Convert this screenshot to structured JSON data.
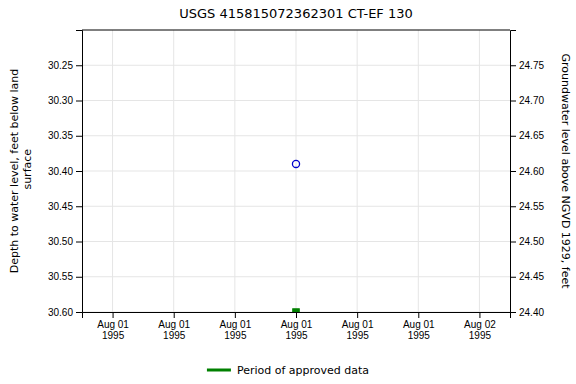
{
  "chart_data": {
    "type": "scatter",
    "title": "USGS 415815072362301  CT-EF   130",
    "y_label": "Depth to water level, feet below land\n surface",
    "y2_label": "Groundwater level above NGVD 1929, feet",
    "categories": [
      "Aug 01\n1995",
      "Aug 01\n1995",
      "Aug 01\n1995",
      "Aug 01\n1995",
      "Aug 01\n1995",
      "Aug 01\n1995",
      "Aug 02\n1995"
    ],
    "series": [
      {
        "color": "#0000cc",
        "marker": "circle-open",
        "values": [
          null,
          null,
          null,
          30.39,
          null,
          null,
          null
        ]
      },
      {
        "name": "Period of approved data",
        "color": "#008000",
        "marker": "square",
        "values": [
          null,
          null,
          null,
          30.6,
          null,
          null,
          null
        ]
      }
    ],
    "ylim": [
      30.6,
      30.2
    ],
    "yticks": [
      30.25,
      {
        "value": 30.3,
        "label": "30.30"
      },
      30.35,
      {
        "value": 30.4,
        "label": "30.40"
      },
      30.45,
      {
        "value": 30.5,
        "label": "30.50"
      },
      30.55,
      {
        "value": 30.6,
        "label": "30.60"
      }
    ],
    "y2lim": [
      24.4,
      24.8
    ],
    "y2ticks": [
      24.75,
      {
        "value": 24.7,
        "label": "24.70"
      },
      24.65,
      {
        "value": 24.6,
        "label": "24.60"
      },
      24.55,
      {
        "value": 24.5,
        "label": "24.50"
      },
      24.45,
      {
        "value": 24.4,
        "label": "24.40"
      }
    ],
    "grid": true,
    "legend": "bottom"
  }
}
